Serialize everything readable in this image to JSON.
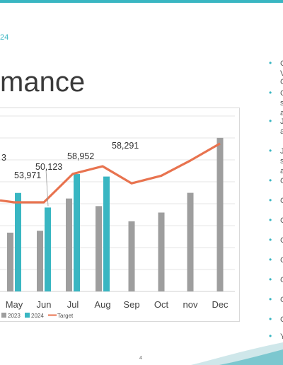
{
  "slide": {
    "subtitle_fragment": "24",
    "title_fragment": "mance",
    "page_number": "4",
    "accent_color": "#39b6c2"
  },
  "side_bullets": [
    {
      "text": "C"
    },
    {
      "text": "V"
    },
    {
      "text": "C"
    },
    {
      "text": "C"
    },
    {
      "text": "s"
    },
    {
      "text": "a"
    },
    {
      "text": "J"
    },
    {
      "text": "a"
    },
    {
      "text": "J"
    },
    {
      "text": "s"
    },
    {
      "text": "a"
    },
    {
      "text": "C"
    },
    {
      "text": "C"
    },
    {
      "text": "C"
    },
    {
      "text": "C"
    },
    {
      "text": "C"
    },
    {
      "text": "C"
    },
    {
      "text": "C"
    },
    {
      "text": "C"
    },
    {
      "text": "Y"
    }
  ],
  "chart_data": {
    "type": "bar",
    "categories": [
      "May",
      "Jun",
      "Jul",
      "Aug",
      "Sep",
      "Oct",
      "nov",
      "Dec"
    ],
    "partial_label_left": "3",
    "series": [
      {
        "name": "2023",
        "color": "#9e9e9e",
        "values": [
          43500,
          44000,
          52500,
          50500,
          46500,
          48800,
          54000,
          68500
        ]
      },
      {
        "name": "2024",
        "color": "#39b6c2",
        "values": [
          53971,
          50123,
          58952,
          58291,
          null,
          null,
          null,
          null
        ]
      },
      {
        "name": "Target",
        "color": "#e8734f",
        "type": "line",
        "values": [
          51500,
          51500,
          59000,
          61000,
          56500,
          58500,
          62500,
          67000
        ]
      }
    ],
    "data_labels": [
      "53,971",
      "50,123",
      "58,952",
      "58,291"
    ],
    "ylim": [
      28000,
      75000
    ],
    "grid": true,
    "legend": "bottom-left"
  }
}
